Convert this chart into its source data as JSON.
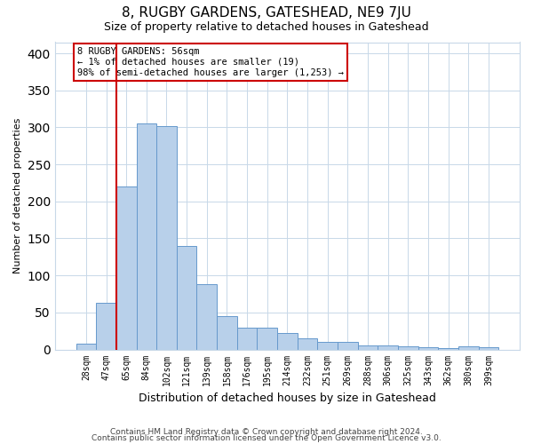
{
  "title": "8, RUGBY GARDENS, GATESHEAD, NE9 7JU",
  "subtitle": "Size of property relative to detached houses in Gateshead",
  "xlabel": "Distribution of detached houses by size in Gateshead",
  "ylabel": "Number of detached properties",
  "categories": [
    "28sqm",
    "47sqm",
    "65sqm",
    "84sqm",
    "102sqm",
    "121sqm",
    "139sqm",
    "158sqm",
    "176sqm",
    "195sqm",
    "214sqm",
    "232sqm",
    "251sqm",
    "269sqm",
    "288sqm",
    "306sqm",
    "325sqm",
    "343sqm",
    "362sqm",
    "380sqm",
    "399sqm"
  ],
  "values": [
    8,
    63,
    220,
    305,
    302,
    140,
    88,
    45,
    30,
    30,
    22,
    15,
    10,
    10,
    5,
    5,
    4,
    3,
    2,
    4,
    3
  ],
  "bar_color": "#b8d0ea",
  "bar_edge_color": "#6699cc",
  "vline_x_idx": 1.5,
  "vline_color": "#cc0000",
  "annotation_text": "8 RUGBY GARDENS: 56sqm\n← 1% of detached houses are smaller (19)\n98% of semi-detached houses are larger (1,253) →",
  "annotation_box_color": "#ffffff",
  "annotation_box_edge": "#cc0000",
  "footer1": "Contains HM Land Registry data © Crown copyright and database right 2024.",
  "footer2": "Contains public sector information licensed under the Open Government Licence v3.0.",
  "ylim": [
    0,
    415
  ],
  "yticks": [
    0,
    50,
    100,
    150,
    200,
    250,
    300,
    350,
    400
  ],
  "background_color": "#ffffff",
  "grid_color": "#c8d8e8",
  "title_fontsize": 11,
  "subtitle_fontsize": 9
}
